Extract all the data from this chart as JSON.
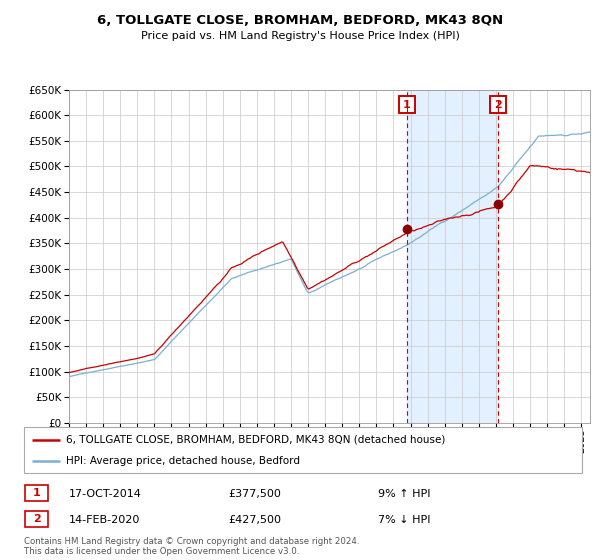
{
  "title": "6, TOLLGATE CLOSE, BROMHAM, BEDFORD, MK43 8QN",
  "subtitle": "Price paid vs. HM Land Registry's House Price Index (HPI)",
  "legend_line1": "6, TOLLGATE CLOSE, BROMHAM, BEDFORD, MK43 8QN (detached house)",
  "legend_line2": "HPI: Average price, detached house, Bedford",
  "marker1_date": "17-OCT-2014",
  "marker1_price": 377500,
  "marker1_pct": "9% ↑ HPI",
  "marker1_year": 2014.79,
  "marker2_date": "14-FEB-2020",
  "marker2_price": 427500,
  "marker2_pct": "7% ↓ HPI",
  "marker2_year": 2020.12,
  "xmin": 1995.0,
  "xmax": 2025.5,
  "ymin": 0,
  "ymax": 650000,
  "yticks": [
    0,
    50000,
    100000,
    150000,
    200000,
    250000,
    300000,
    350000,
    400000,
    450000,
    500000,
    550000,
    600000,
    650000
  ],
  "footer": "Contains HM Land Registry data © Crown copyright and database right 2024.\nThis data is licensed under the Open Government Licence v3.0.",
  "red_color": "#cc0000",
  "blue_color": "#7ab0d4",
  "bg_shade_color": "#ddeeff"
}
